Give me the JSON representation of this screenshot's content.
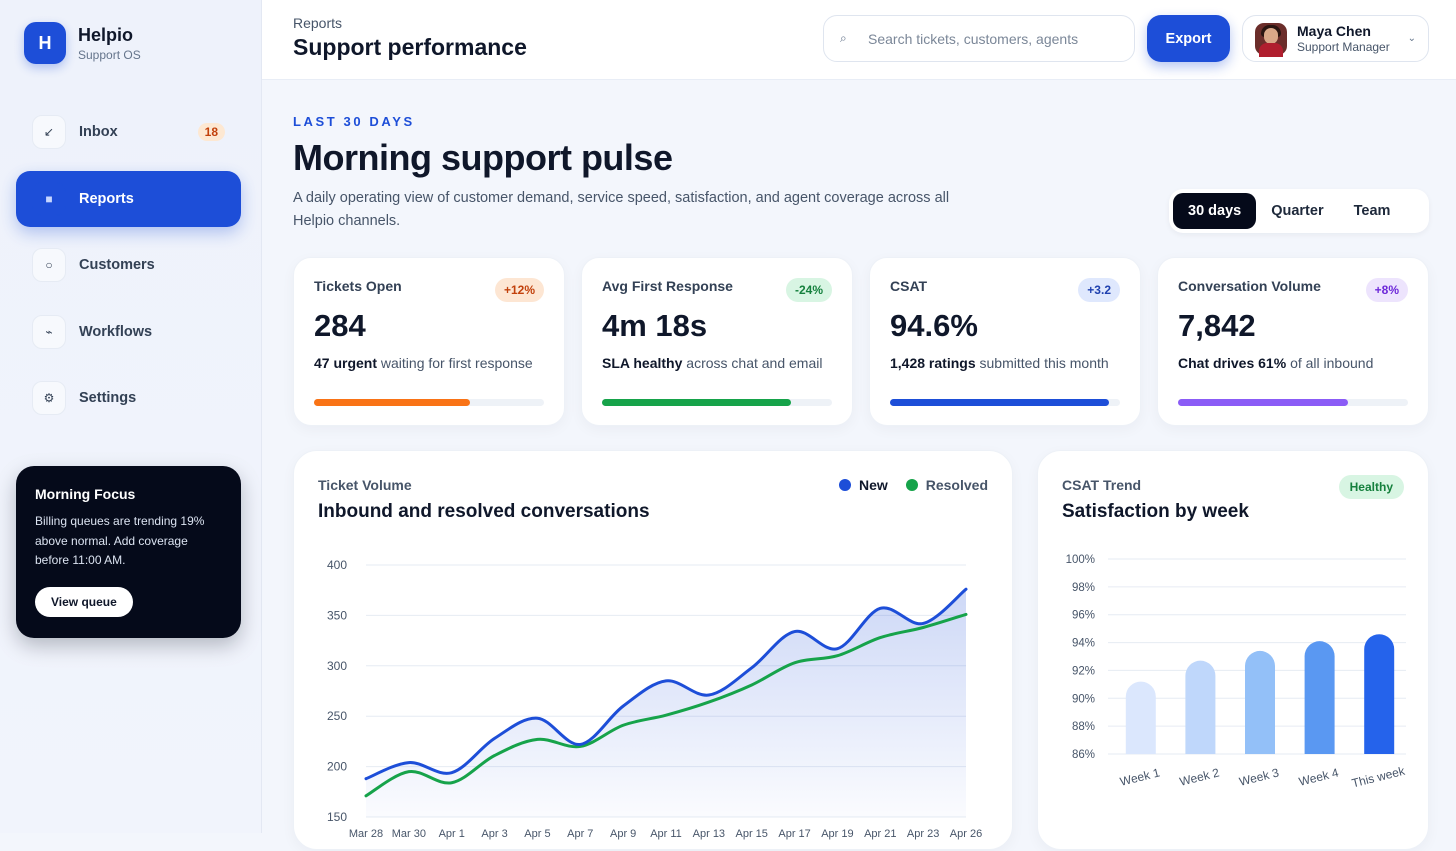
{
  "brand": {
    "name": "Helpio",
    "subtitle": "Support OS",
    "logo_letter": "H"
  },
  "sidebar": {
    "items": [
      {
        "label": "Inbox",
        "icon": "arrow-down-left-icon",
        "glyph": "↙",
        "badge": "18"
      },
      {
        "label": "Reports",
        "icon": "square-icon",
        "glyph": "■",
        "active": true
      },
      {
        "label": "Customers",
        "icon": "circle-icon",
        "glyph": "○"
      },
      {
        "label": "Workflows",
        "icon": "flow-icon",
        "glyph": "⌁"
      },
      {
        "label": "Settings",
        "icon": "gear-icon",
        "glyph": "⚙"
      }
    ]
  },
  "focus": {
    "title": "Morning Focus",
    "body": "Billing queues are trending 19% above normal. Add coverage before 11:00 AM.",
    "button": "View queue"
  },
  "header": {
    "breadcrumb": "Reports",
    "title": "Support performance",
    "search_placeholder": "Search tickets, customers, agents",
    "export_label": "Export",
    "user": {
      "name": "Maya Chen",
      "role": "Support Manager"
    }
  },
  "hero": {
    "eyebrow": "LAST 30 DAYS",
    "title": "Morning support pulse",
    "description": "A daily operating view of customer demand, service speed, satisfaction, and agent coverage across all Helpio channels."
  },
  "segments": [
    {
      "label": "30 days",
      "active": true
    },
    {
      "label": "Quarter"
    },
    {
      "label": "Team"
    }
  ],
  "kpis": [
    {
      "label": "Tickets Open",
      "delta": "+12%",
      "value": "284",
      "note_bold": "47 urgent",
      "note": "waiting for first response",
      "progress": 0.68,
      "color": "#f97316",
      "delta_bg": "#fde6d3",
      "delta_fg": "#c2410c"
    },
    {
      "label": "Avg First Response",
      "delta": "-24%",
      "value": "4m 18s",
      "note_bold": "SLA healthy",
      "note": "across chat and email",
      "progress": 0.82,
      "color": "#16a34a",
      "delta_bg": "#d8f5e3",
      "delta_fg": "#15803d"
    },
    {
      "label": "CSAT",
      "delta": "+3.2",
      "value": "94.6%",
      "note_bold": "1,428 ratings",
      "note": "submitted this month",
      "progress": 0.95,
      "color": "#1d4ed8",
      "delta_bg": "#dfe8fd",
      "delta_fg": "#1e40af"
    },
    {
      "label": "Conversation Volume",
      "delta": "+8%",
      "value": "7,842",
      "note_bold": "Chat drives 61%",
      "note": "of all inbound",
      "progress": 0.74,
      "color": "#8b5cf6",
      "delta_bg": "#ede4fd",
      "delta_fg": "#6d28d9"
    }
  ],
  "volume_card": {
    "eyebrow": "Ticket Volume",
    "title": "Inbound and resolved conversations"
  },
  "csat_card": {
    "eyebrow": "CSAT Trend",
    "title": "Satisfaction by week",
    "status": "Healthy"
  },
  "chart_data": [
    {
      "type": "line",
      "title": "Inbound and resolved conversations",
      "x": [
        "Mar 28",
        "Mar 30",
        "Apr 1",
        "Apr 3",
        "Apr 5",
        "Apr 7",
        "Apr 9",
        "Apr 11",
        "Apr 13",
        "Apr 15",
        "Apr 17",
        "Apr 19",
        "Apr 21",
        "Apr 23",
        "Apr 26"
      ],
      "series": [
        {
          "name": "New",
          "color": "#1d4ed8",
          "values": [
            188,
            204,
            194,
            228,
            248,
            222,
            260,
            285,
            271,
            298,
            334,
            317,
            357,
            342,
            376
          ]
        },
        {
          "name": "Resolved",
          "color": "#16a34a",
          "values": [
            171,
            195,
            184,
            211,
            227,
            220,
            241,
            251,
            264,
            281,
            303,
            310,
            328,
            338,
            351
          ]
        }
      ],
      "ylim": [
        150,
        400
      ],
      "yticks": [
        "400",
        "350",
        "300",
        "250",
        "200",
        "150"
      ]
    },
    {
      "type": "bar",
      "title": "Satisfaction by week",
      "categories": [
        "Week 1",
        "Week 2",
        "Week 3",
        "Week 4",
        "This week"
      ],
      "values": [
        91.2,
        92.7,
        93.4,
        94.1,
        94.6
      ],
      "colors": [
        "#dbe7fd",
        "#bfd7fb",
        "#93c0f8",
        "#5a98f2",
        "#2563eb"
      ],
      "ylim": [
        86,
        100
      ],
      "yticks": [
        "100%",
        "98%",
        "96%",
        "94%",
        "92%",
        "90%",
        "88%",
        "86%"
      ]
    }
  ]
}
